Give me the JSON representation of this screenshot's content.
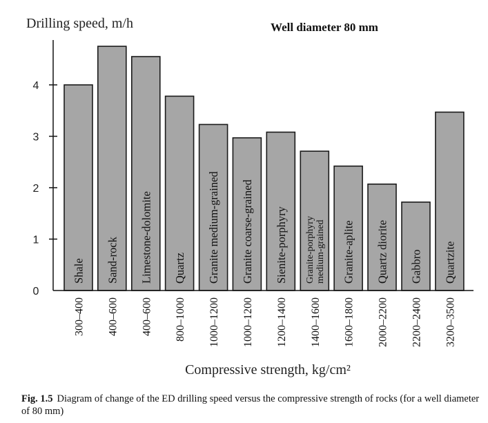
{
  "chart_data": {
    "type": "bar",
    "title": "Well diameter 80 mm",
    "ylabel": "Drilling speed, m/h",
    "xlabel": "Compressive strength, kg/cm²",
    "ylim": [
      0,
      5
    ],
    "yticks": [
      0,
      1,
      2,
      3,
      4
    ],
    "grid": false,
    "categories": [
      "300–400",
      "400–600",
      "400–600",
      "800–1000",
      "1000–1200",
      "1000–1200",
      "1200–1400",
      "1400–1600",
      "1600–1800",
      "2000–2200",
      "2200–2400",
      "3200–3500"
    ],
    "rock_types": [
      "Shale",
      "Sand-rock",
      "Limestone-dolomite",
      "Quartz",
      "Granite medium-grained",
      "Granite coarse-grained",
      "Sienite-porphyry",
      "Granite-porphyry medium-grained",
      "Granite-aplite",
      "Quartz diorite",
      "Gabbro",
      "Quartzite"
    ],
    "values": [
      4.0,
      4.75,
      4.55,
      3.78,
      3.23,
      2.97,
      3.08,
      2.71,
      2.42,
      2.07,
      1.72,
      3.47
    ],
    "bar_color": "#a6a6a6",
    "edge_color": "#1a1a1a"
  },
  "caption": {
    "label": "Fig. 1.5",
    "text": "Diagram of change of the ED drilling speed versus the compressive strength of rocks (for a well diameter of 80 mm)"
  }
}
